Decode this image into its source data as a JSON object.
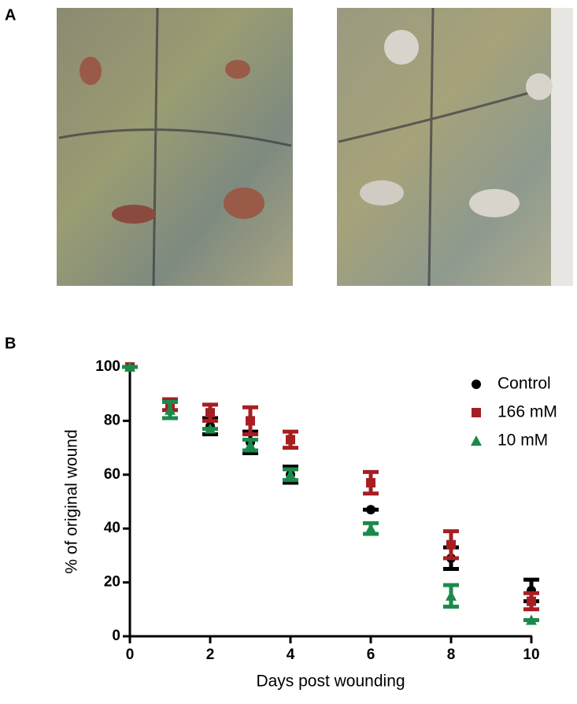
{
  "panel_labels": [
    "A",
    "B"
  ],
  "chart_data": {
    "type": "scatter",
    "x_label": "Days post wounding",
    "y_label": "% of original wound",
    "x": [
      0,
      1,
      2,
      3,
      4,
      6,
      8,
      10
    ],
    "xlim": [
      0,
      10
    ],
    "ylim": [
      0,
      100
    ],
    "xticks": [
      0,
      2,
      4,
      6,
      8,
      10
    ],
    "yticks": [
      0,
      20,
      40,
      60,
      80,
      100
    ],
    "legend": "top-right",
    "series": [
      {
        "name": "Control",
        "color": "#000000",
        "marker": "circle",
        "values": [
          100,
          84,
          78,
          72,
          60,
          47,
          29,
          17
        ],
        "errors": [
          0,
          3,
          3,
          4,
          3,
          0,
          4,
          4
        ]
      },
      {
        "name": "166 mM",
        "color": "#a61e22",
        "marker": "square",
        "values": [
          100,
          86,
          83,
          80,
          73,
          57,
          34,
          13
        ],
        "errors": [
          0,
          2,
          3,
          5,
          3,
          4,
          5,
          3
        ]
      },
      {
        "name": "10 mM",
        "color": "#1a8a4a",
        "marker": "triangle",
        "values": [
          100,
          84,
          77,
          71,
          60,
          40,
          15,
          6
        ],
        "errors": [
          0,
          3,
          0,
          2,
          2,
          2,
          4,
          0
        ]
      }
    ]
  }
}
